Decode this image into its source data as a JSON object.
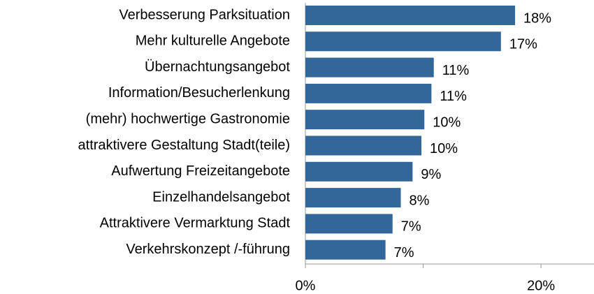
{
  "chart_data": {
    "type": "bar",
    "orientation": "horizontal",
    "categories": [
      "Verbesserung Parksituation",
      "Mehr kulturelle Angebote",
      "Übernachtungsangebot",
      "Information/Besucherlenkung",
      "(mehr) hochwertige Gastronomie",
      "attraktivere Gestaltung Stadt(teile)",
      "Aufwertung Freizeitangebote",
      "Einzelhandelsangebot",
      "Attraktivere Vermarktung Stadt",
      "Verkehrskonzept /-führung"
    ],
    "values": [
      17.8,
      16.6,
      10.9,
      10.7,
      10.1,
      9.85,
      9.1,
      8.1,
      7.4,
      6.8
    ],
    "value_labels": [
      "18%",
      "17%",
      "11%",
      "11%",
      "10%",
      "10%",
      "9%",
      "8%",
      "7%",
      "7%"
    ],
    "color": "#336699",
    "xlim": [
      0,
      24.5
    ],
    "xticks": [
      {
        "value": 0,
        "label": "0%"
      },
      {
        "value": 10,
        "label": null
      },
      {
        "value": 20,
        "label": "20%"
      }
    ]
  }
}
